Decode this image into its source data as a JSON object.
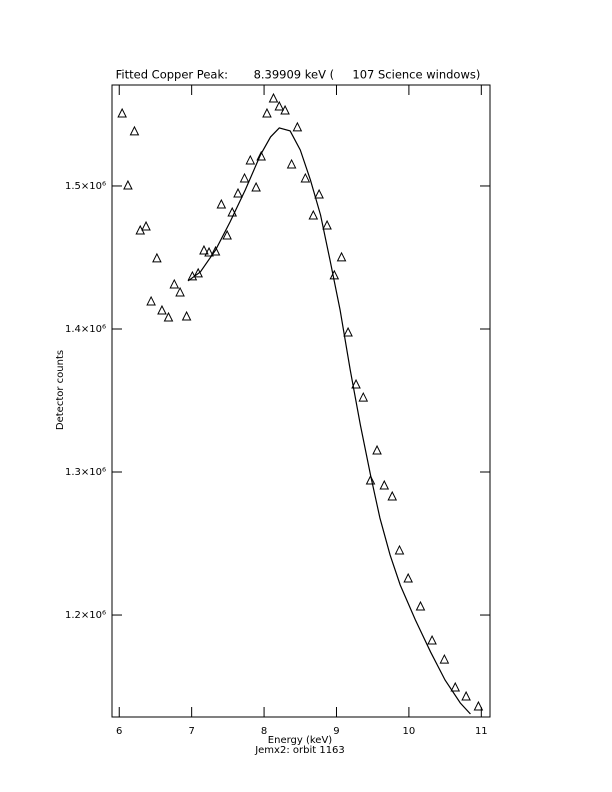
{
  "chart_data": {
    "type": "scatter",
    "title": "Fitted Copper Peak:       8.39909 keV (     107 Science windows)",
    "x_label": "Energy (keV)",
    "subtitle": "Jemx2: orbit 1163",
    "y_label": "Detector counts",
    "xlim": [
      5.9,
      11.12
    ],
    "ylim": [
      1128700,
      1570600
    ],
    "xticks": [
      6,
      7,
      8,
      9,
      10,
      11
    ],
    "yticks": [
      {
        "value": 1200000,
        "label": "1.2×10⁶"
      },
      {
        "value": 1300000,
        "label": "1.3×10⁶"
      },
      {
        "value": 1400000,
        "label": "1.4×10⁶"
      },
      {
        "value": 1500000,
        "label": "1.5×10⁶"
      }
    ],
    "grid": false,
    "series": [
      {
        "type": "scatter",
        "marker": "triangle",
        "color": "#000000",
        "x": [
          6.04,
          6.12,
          6.21,
          6.29,
          6.37,
          6.44,
          6.52,
          6.59,
          6.68,
          6.76,
          6.84,
          6.93,
          7.01,
          7.09,
          7.17,
          7.24,
          7.33,
          7.41,
          7.49,
          7.56,
          7.64,
          7.73,
          7.81,
          7.89,
          7.96,
          8.04,
          8.13,
          8.21,
          8.29,
          8.38,
          8.46,
          8.57,
          8.68,
          8.76,
          8.87,
          8.97,
          9.07,
          9.16,
          9.27,
          9.37,
          9.47,
          9.56,
          9.66,
          9.77,
          9.87,
          9.99,
          10.16,
          10.32,
          10.49,
          10.64,
          10.79,
          10.96
        ],
        "values": [
          1550300,
          1500000,
          1537800,
          1468500,
          1471300,
          1418900,
          1449000,
          1412600,
          1407700,
          1430800,
          1425200,
          1408400,
          1436400,
          1438500,
          1454500,
          1453100,
          1453800,
          1486700,
          1465000,
          1481100,
          1494400,
          1504900,
          1517500,
          1498600,
          1520300,
          1550300,
          1560800,
          1555200,
          1552400,
          1514700,
          1540600,
          1504900,
          1479000,
          1493700,
          1472000,
          1437100,
          1449700,
          1397200,
          1360800,
          1351700,
          1293700,
          1314700,
          1290200,
          1282500,
          1244800,
          1225200,
          1205600,
          1181800,
          1168500,
          1149000,
          1142700,
          1135700
        ]
      },
      {
        "type": "line",
        "color": "#000000",
        "x": [
          6.95,
          7.12,
          7.33,
          7.53,
          7.74,
          7.95,
          8.09,
          8.21,
          8.36,
          8.5,
          8.64,
          8.78,
          8.91,
          9.05,
          9.19,
          9.33,
          9.47,
          9.6,
          9.74,
          9.88,
          10.09,
          10.3,
          10.5,
          10.71,
          10.85
        ],
        "values": [
          1433600,
          1439900,
          1455200,
          1474800,
          1497200,
          1521700,
          1534300,
          1540600,
          1538500,
          1525200,
          1504200,
          1479700,
          1448300,
          1413300,
          1371300,
          1332900,
          1297900,
          1267800,
          1242000,
          1221000,
          1196500,
          1174100,
          1154500,
          1138500,
          1130800
        ]
      }
    ]
  }
}
